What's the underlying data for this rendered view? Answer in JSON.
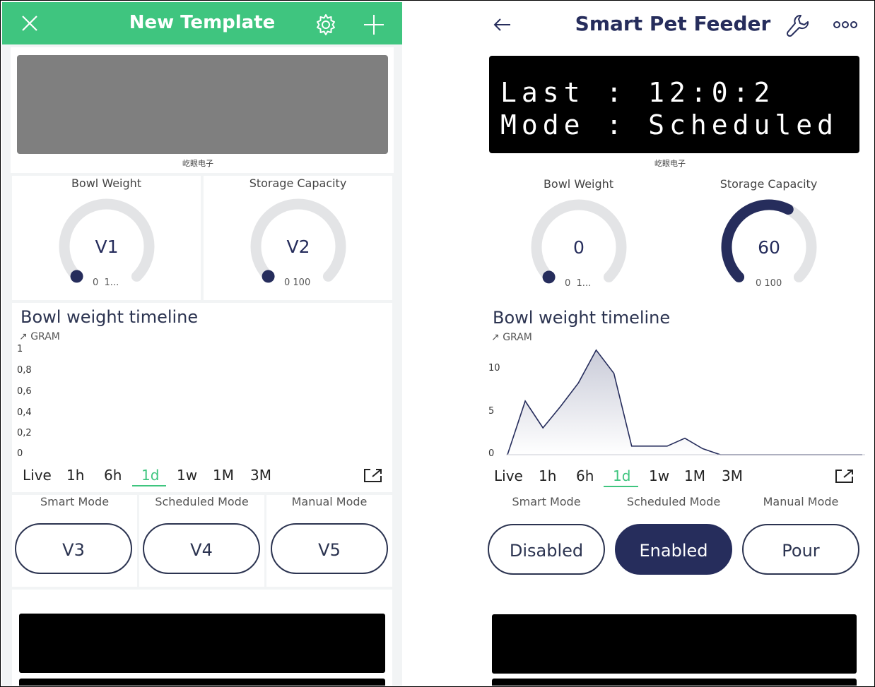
{
  "left": {
    "header": {
      "title": "New Template",
      "close_icon": "close-icon",
      "settings_icon": "gear-icon",
      "add_icon": "plus-icon"
    },
    "brand": "屹眼电子",
    "gauges": [
      {
        "label": "Bowl Weight",
        "value": "V1",
        "range": "0  1...",
        "level": 0
      },
      {
        "label": "Storage Capacity",
        "value": "V2",
        "range": "0 100",
        "level": 0
      }
    ],
    "chart": {
      "title": "Bowl weight timeline",
      "unit": "GRAM",
      "yticks": [
        "1",
        "0,8",
        "0,6",
        "0,4",
        "0,2",
        "0"
      ]
    },
    "ranges": [
      "Live",
      "1h",
      "6h",
      "1d",
      "1w",
      "1M",
      "3M"
    ],
    "active_range": "1d",
    "modes": [
      {
        "label": "Smart Mode",
        "button": "V3"
      },
      {
        "label": "Scheduled Mode",
        "button": "V4"
      },
      {
        "label": "Manual Mode",
        "button": "V5"
      }
    ]
  },
  "right": {
    "header": {
      "title": "Smart Pet Feeder",
      "back_icon": "arrow-left-icon",
      "wrench_icon": "wrench-icon",
      "more_icon": "more-icon"
    },
    "lcd": {
      "line1": "Last : 12:0:2",
      "line2": "Mode : Scheduled"
    },
    "brand": "屹眼电子",
    "gauges": [
      {
        "label": "Bowl Weight",
        "value": "0",
        "range": "0  1...",
        "level": 0
      },
      {
        "label": "Storage Capacity",
        "value": "60",
        "range": "0 100",
        "level": 0.6
      }
    ],
    "chart": {
      "title": "Bowl weight timeline",
      "unit": "GRAM",
      "yticks": [
        "10",
        "5",
        "0"
      ]
    },
    "ranges": [
      "Live",
      "1h",
      "6h",
      "1d",
      "1w",
      "1M",
      "3M"
    ],
    "active_range": "1d",
    "modes": [
      {
        "label": "Smart Mode",
        "button": "Disabled",
        "state": "off"
      },
      {
        "label": "Scheduled Mode",
        "button": "Enabled",
        "state": "on"
      },
      {
        "label": "Manual Mode",
        "button": "Pour",
        "state": "off"
      }
    ]
  },
  "colors": {
    "blynk_green": "#3fc57f",
    "navy": "#262d5c",
    "gauge_track": "#e3e4e6"
  },
  "chart_data": {
    "type": "area",
    "title": "Bowl weight timeline",
    "ylabel": "GRAM",
    "ylim": [
      0,
      12
    ],
    "x": [
      0,
      1,
      2,
      3,
      4,
      5,
      6,
      7,
      8,
      9,
      10,
      11,
      12,
      13,
      14,
      15,
      16,
      17,
      18,
      19,
      20
    ],
    "values": [
      0,
      6.2,
      3.1,
      5.6,
      8.3,
      12.1,
      9.4,
      1.0,
      1.0,
      1.0,
      1.9,
      0.7,
      0,
      0,
      0,
      0,
      0,
      0,
      0,
      0,
      0
    ]
  }
}
